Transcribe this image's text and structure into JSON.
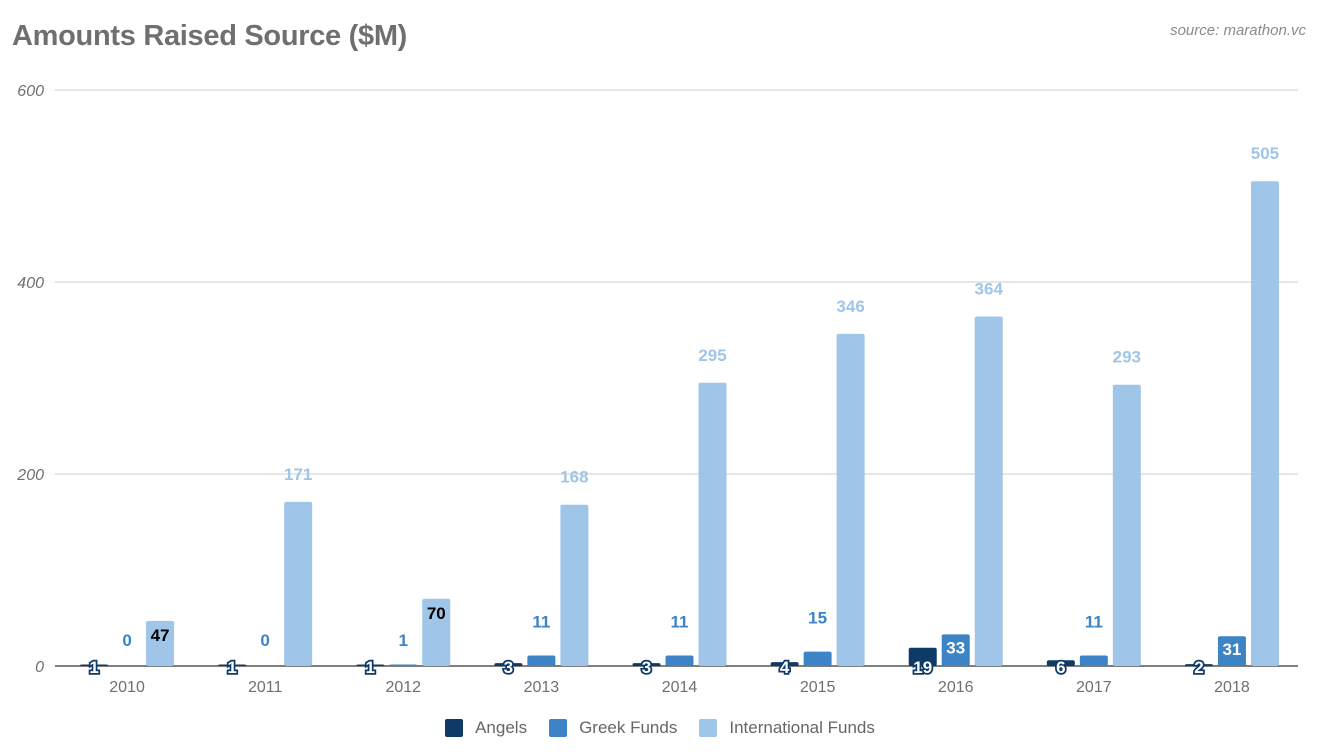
{
  "header": {
    "title": "Amounts Raised Source ($M)",
    "source": "source: marathon.vc"
  },
  "colors": {
    "angels": "#0d3a66",
    "greek": "#3d84c6",
    "international": "#9fc5e8",
    "grid": "#cccccc",
    "axis": "#333333",
    "tick_text": "#6f6f6f"
  },
  "legend": [
    {
      "label": "Angels",
      "color": "#0d3a66"
    },
    {
      "label": "Greek Funds",
      "color": "#3d84c6"
    },
    {
      "label": "International Funds",
      "color": "#9fc5e8"
    }
  ],
  "chart_data": {
    "type": "bar",
    "title": "Amounts Raised Source ($M)",
    "xlabel": "",
    "ylabel": "",
    "ylim": [
      0,
      600
    ],
    "yticks": [
      0,
      200,
      400,
      600
    ],
    "grid": true,
    "legend_position": "bottom",
    "categories": [
      "2010",
      "2011",
      "2012",
      "2013",
      "2014",
      "2015",
      "2016",
      "2017",
      "2018"
    ],
    "series": [
      {
        "name": "Angels",
        "values": [
          1,
          1,
          1,
          3,
          3,
          4,
          19,
          6,
          2
        ]
      },
      {
        "name": "Greek Funds",
        "values": [
          0,
          0,
          1,
          11,
          11,
          15,
          33,
          11,
          31
        ]
      },
      {
        "name": "International Funds",
        "values": [
          47,
          171,
          70,
          168,
          295,
          346,
          364,
          293,
          505
        ]
      }
    ]
  }
}
